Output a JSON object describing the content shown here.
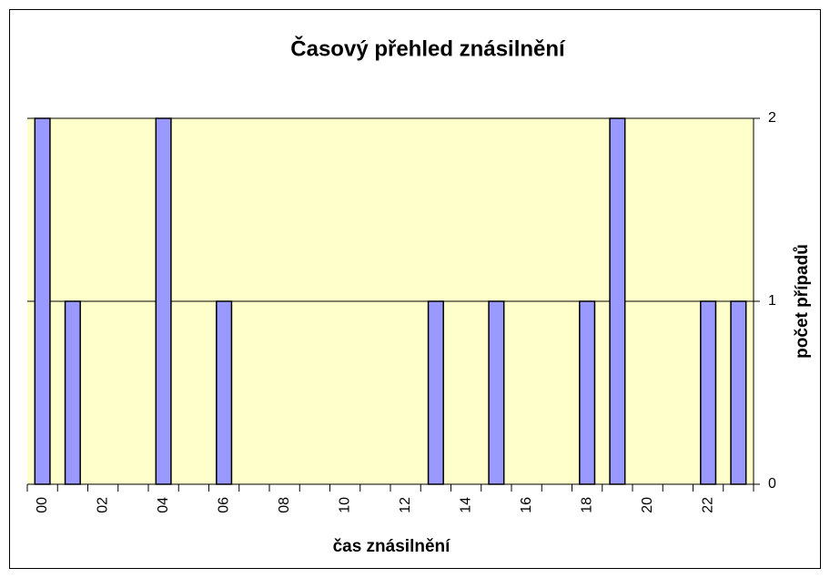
{
  "chart_data": {
    "type": "bar",
    "title": "Časový přehled znásilnění",
    "x_label": "čas znásilnění",
    "y_label": "počet případů",
    "categories": [
      "00",
      null,
      "02",
      null,
      "04",
      null,
      "06",
      null,
      "08",
      null,
      "10",
      null,
      "12",
      null,
      "14",
      null,
      "16",
      null,
      "18",
      null,
      "20",
      null,
      "22",
      null
    ],
    "values": [
      2,
      1,
      0,
      0,
      2,
      0,
      1,
      0,
      0,
      0,
      0,
      0,
      0,
      1,
      0,
      1,
      0,
      0,
      1,
      2,
      0,
      0,
      1,
      1
    ],
    "color": "#9999ff",
    "ylim": [
      0,
      2
    ],
    "yticks": [
      0,
      1,
      2
    ],
    "grid": true
  }
}
